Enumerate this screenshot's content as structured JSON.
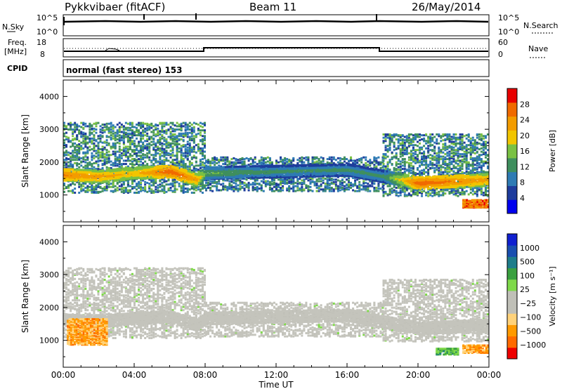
{
  "header": {
    "title": "Pykkvibaer (fitACF)",
    "beam": "Beam 11",
    "date": "26/May/2014"
  },
  "panels": {
    "nsky_label": "N.Sky",
    "nsearch_label": "N.Search",
    "nsky_ticks": [
      "10^5",
      "10^0"
    ],
    "nsearch_ticks": [
      "10^5",
      "10^0"
    ],
    "freq_label_1": "Freq.",
    "freq_label_2": "[MHz]",
    "freq_ticks": [
      "18",
      "8"
    ],
    "nave_label": "Nave",
    "nave_ticks": [
      "60",
      "0"
    ],
    "cpid_label": "CPID",
    "cpid_text": "normal (fast stereo) 153"
  },
  "colors": {
    "power_scale": [
      "#0000ee",
      "#1e3c9c",
      "#2e7bb4",
      "#3f8f5e",
      "#7ac143",
      "#f2c500",
      "#f39c00",
      "#f06a00",
      "#e80000"
    ],
    "velocity_scale": [
      "#ee0000",
      "#ff6a00",
      "#ff9a00",
      "#ffd27a",
      "#c0c0b8",
      "#c0c0b8",
      "#7fd94a",
      "#3aa040",
      "#1e7d8a",
      "#1a4fb0",
      "#1020d0"
    ],
    "background_scatter": "#c4c4bc"
  },
  "chart_data": [
    {
      "type": "heatmap",
      "title": "",
      "xlabel": "Time UT",
      "ylabel": "Slant Range [km]",
      "x_ticks": [
        "00:00",
        "04:00",
        "08:00",
        "12:00",
        "16:00",
        "20:00",
        "00:00"
      ],
      "y_ticks": [
        "1000",
        "2000",
        "3000",
        "4000"
      ],
      "xlim": [
        0,
        24
      ],
      "ylim": [
        180,
        4500
      ],
      "colorbar": {
        "label": "Power [dB]",
        "ticks": [
          "4",
          "8",
          "12",
          "16",
          "20",
          "24",
          "28"
        ],
        "range": [
          0,
          30
        ]
      },
      "scatter_bands": [
        {
          "t0": 0.0,
          "t1": 8.0,
          "r0": 1100,
          "r1": 3250,
          "value": 10
        },
        {
          "t0": 8.0,
          "t1": 18.0,
          "r0": 1150,
          "r1": 2200,
          "value": 9
        },
        {
          "t0": 18.0,
          "t1": 24.0,
          "r0": 1000,
          "r1": 2900,
          "value": 10
        }
      ],
      "strong_echo_trace": [
        {
          "t": 0.0,
          "r": 1650,
          "value": 24
        },
        {
          "t": 2.0,
          "r": 1600,
          "value": 22
        },
        {
          "t": 4.0,
          "r": 1700,
          "value": 20
        },
        {
          "t": 6.0,
          "r": 1750,
          "value": 26
        },
        {
          "t": 7.5,
          "r": 1500,
          "value": 22
        },
        {
          "t": 8.0,
          "r": 1700,
          "value": 14
        },
        {
          "t": 12.0,
          "r": 1750,
          "value": 12
        },
        {
          "t": 16.0,
          "r": 1800,
          "value": 12
        },
        {
          "t": 18.0,
          "r": 1600,
          "value": 12
        },
        {
          "t": 20.0,
          "r": 1400,
          "value": 26
        },
        {
          "t": 24.0,
          "r": 1500,
          "value": 22
        }
      ]
    },
    {
      "type": "heatmap",
      "title": "",
      "xlabel": "Time UT",
      "ylabel": "Slant Range [km]",
      "x_ticks": [
        "00:00",
        "04:00",
        "08:00",
        "12:00",
        "16:00",
        "20:00",
        "00:00"
      ],
      "y_ticks": [
        "1000",
        "2000",
        "3000",
        "4000"
      ],
      "xlim": [
        0,
        24
      ],
      "ylim": [
        180,
        4500
      ],
      "colorbar": {
        "label": "Velocity [m s⁻¹]",
        "ticks": [
          "1000",
          "500",
          "100",
          "25",
          "−25",
          "−100",
          "−500",
          "−1000"
        ],
        "range": [
          -1000,
          1000
        ]
      },
      "features": [
        {
          "t0": 0.2,
          "t1": 2.5,
          "r0": 900,
          "r1": 1700,
          "value": -500
        },
        {
          "t0": 22.5,
          "t1": 24.0,
          "r0": 650,
          "r1": 900,
          "value": -500
        },
        {
          "t0": 21.0,
          "t1": 22.3,
          "r0": 600,
          "r1": 800,
          "value": 300
        }
      ]
    }
  ]
}
